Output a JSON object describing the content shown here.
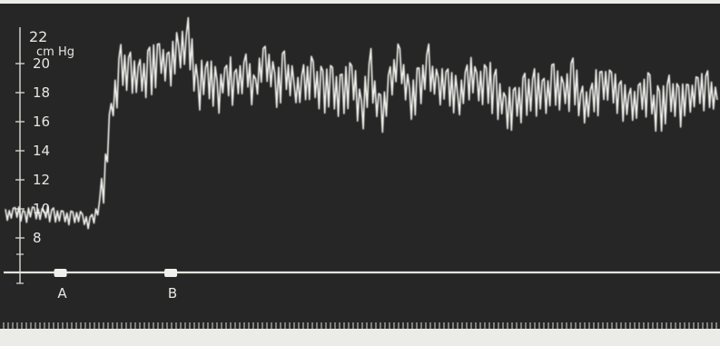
{
  "chart_data": {
    "type": "line",
    "title": "",
    "xlabel": "",
    "ylabel": "cm Hg",
    "y_axis_top_label": "22",
    "y_ticks": [
      "20",
      "18",
      "16",
      "14",
      "12",
      "10",
      "8"
    ],
    "ylim": [
      8,
      22
    ],
    "grid": false,
    "background": "dark (kymograph photo)",
    "trace_color": "#f2f2ee",
    "series": [
      {
        "values": [
          9.6,
          9.7,
          9.5,
          9.8,
          9.6,
          9.7,
          9.4,
          9.5,
          9.3,
          9.1,
          10.6,
          16.5,
          19.6,
          19.2,
          18.8,
          19.4,
          20.1,
          19.7,
          20.6,
          21.4,
          18.1,
          19.3,
          17.9,
          19.2,
          18.4,
          19.6,
          18.1,
          20.4,
          18.2,
          19.5,
          17.9,
          18.6,
          18.9,
          18.3,
          18.1,
          17.6,
          18.7,
          16.4,
          19.4,
          16.1,
          18.9,
          19.8,
          17.4,
          18.6,
          19.7,
          18.1,
          18.9,
          17.2,
          19.1,
          18.4,
          18.8,
          17.9,
          16.9,
          17.3,
          17.8,
          18.2,
          17.7,
          18.5,
          17.9,
          18.7,
          16.8,
          17.6,
          18.2,
          18.4,
          17.5,
          17.1,
          17.9,
          17.6,
          16.5,
          18.2,
          17.4,
          17.1,
          18.3,
          17.8,
          17.5
        ]
      }
    ],
    "markers": [
      {
        "label": "A",
        "at": 0.09
      },
      {
        "label": "B",
        "at": 0.245
      }
    ]
  }
}
